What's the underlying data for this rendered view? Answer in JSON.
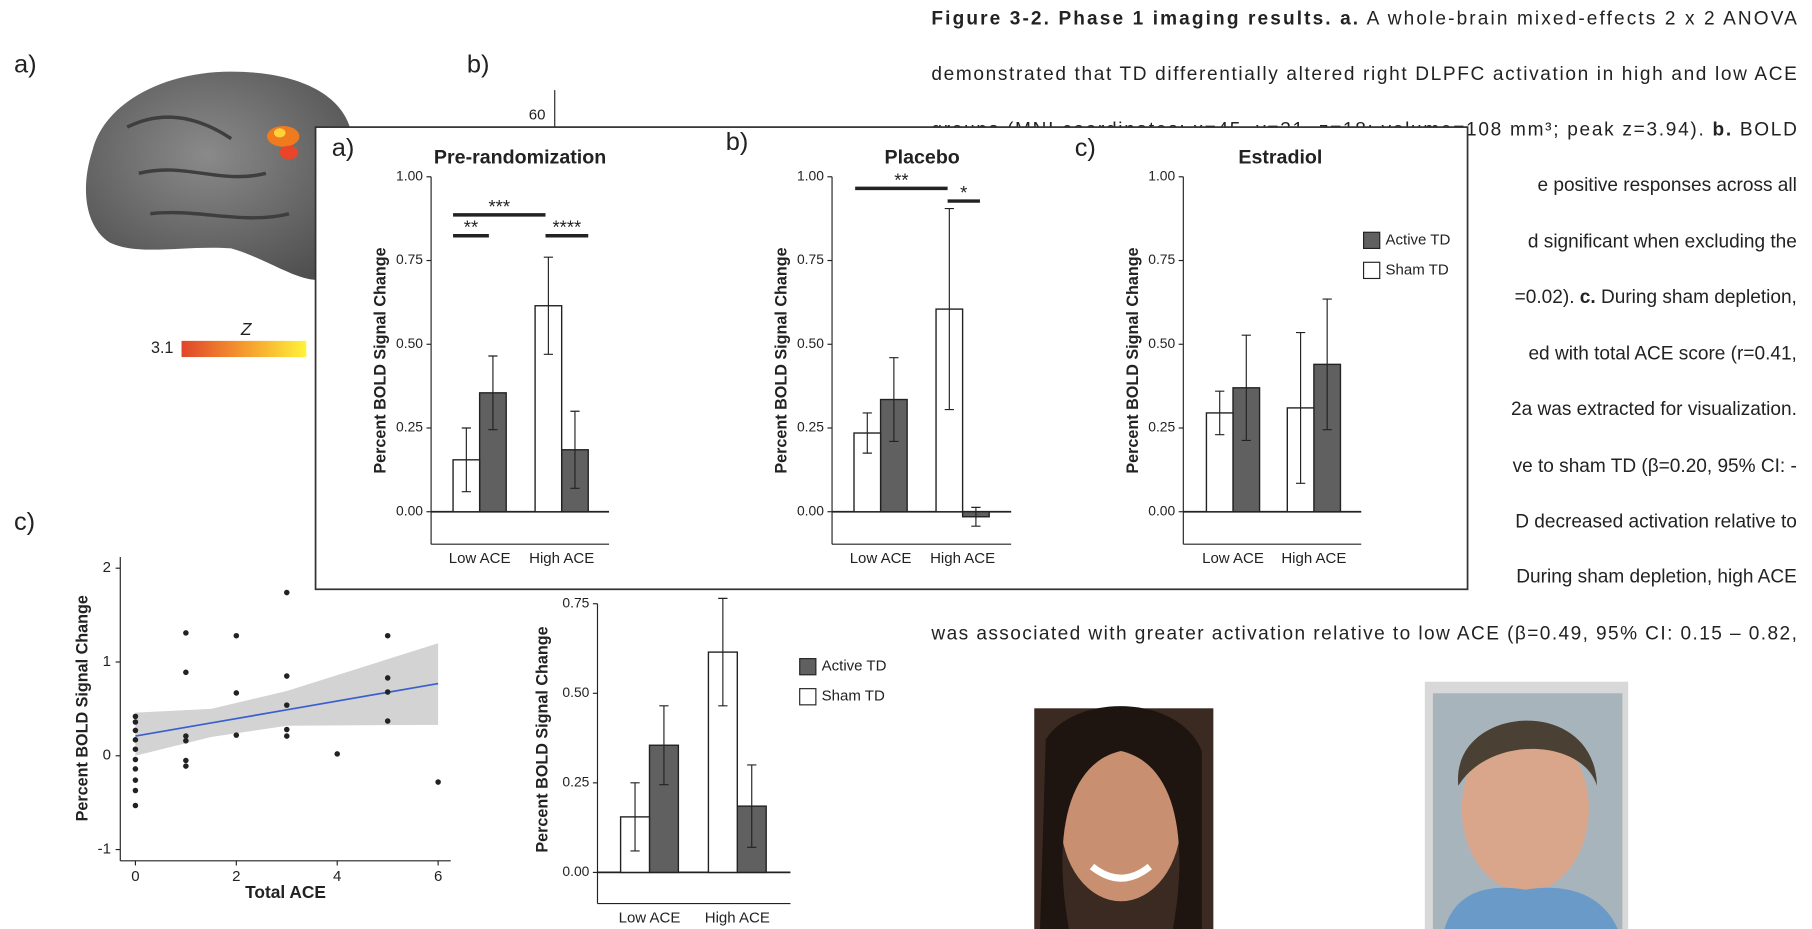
{
  "panel_labels": {
    "a": "a)",
    "b": "b)",
    "c": "c)",
    "overlay_a": "a)",
    "overlay_b": "b)",
    "overlay_c": "c)"
  },
  "brain": {
    "colorbar_label": "Z",
    "colorbar_min": "3.1"
  },
  "partial_axis_tick": "60",
  "caption": [
    [
      {
        "text": "Figure 3-2. Phase 1 imaging results.",
        "bold": true
      },
      {
        "text": " a.",
        "bold": true
      },
      {
        "text": " A whole-brain mixed-effects 2 x 2 ANOVA",
        "bold": false
      }
    ],
    [
      {
        "text": "demonstrated that TD differentially altered right DLPFC activation in high and low ACE",
        "bold": false
      }
    ],
    [
      {
        "text": "groups (MNI coordinates: x=45, y=31, z=18; volume=108 mm³; peak z=3.94).",
        "bold": false
      },
      {
        "text": " b.",
        "bold": true
      },
      {
        "text": " BOLD",
        "bold": false
      }
    ],
    [
      {
        "text": "e positive responses across all",
        "bold": false
      }
    ],
    [
      {
        "text": "d significant when excluding the",
        "bold": false
      }
    ],
    [
      {
        "text": "=0.02).",
        "bold": false
      },
      {
        "text": " c.",
        "bold": true
      },
      {
        "text": " During sham depletion,",
        "bold": false
      }
    ],
    [
      {
        "text": "ed with total ACE score (r=0.41,",
        "bold": false
      }
    ],
    [
      {
        "text": "2a was extracted for visualization.",
        "bold": false
      }
    ],
    [
      {
        "text": "ve to sham TD (β=0.20, 95% CI: -",
        "bold": false
      }
    ],
    [
      {
        "text": "D decreased activation relative to",
        "bold": false
      }
    ],
    [
      {
        "text": "During sham depletion, high ACE",
        "bold": false
      }
    ],
    [
      {
        "text": "was associated with greater activation relative to low ACE (β=0.49, 95% CI: 0.15 – 0.82,",
        "bold": false
      }
    ]
  ],
  "chart_data": [
    {
      "type": "bar",
      "ylabel": "Percent BOLD Signal Change",
      "categories": [
        "Low ACE",
        "High ACE"
      ],
      "series": [
        {
          "name": "Active TD",
          "color": "#606060",
          "values": [
            0.355,
            0.185
          ],
          "errors": [
            0.11,
            0.115
          ]
        },
        {
          "name": "Sham TD",
          "color": "#ffffff",
          "values": [
            0.155,
            0.615
          ],
          "errors": [
            0.095,
            0.15
          ]
        }
      ],
      "ylim": [
        -0.087,
        1.0
      ],
      "yticks": [
        {
          "value": 0,
          "label": "0.00"
        },
        {
          "value": 0.25,
          "label": "0.25"
        },
        {
          "value": 0.5,
          "label": "0.50"
        },
        {
          "value": 0.75,
          "label": "0.75"
        }
      ],
      "legend": "right",
      "annotations": []
    },
    {
      "type": "scatter",
      "xlabel": "Total ACE",
      "ylabel": "Percent BOLD Signal Change",
      "x": [
        0,
        0,
        0,
        0,
        0,
        0,
        0,
        0,
        0,
        0,
        1,
        1,
        1,
        1,
        1,
        1,
        2,
        2,
        2,
        3,
        3,
        3,
        3,
        3,
        4,
        5,
        5,
        5,
        5,
        6
      ],
      "values": [
        0.42,
        0.36,
        0.27,
        0.17,
        0.07,
        -0.04,
        -0.14,
        -0.26,
        -0.37,
        -0.53,
        1.31,
        0.89,
        0.21,
        0.16,
        -0.05,
        -0.11,
        1.28,
        0.67,
        0.22,
        1.74,
        0.85,
        0.54,
        0.28,
        0.21,
        0.02,
        1.28,
        0.83,
        0.68,
        0.37,
        -0.28
      ],
      "color": "#222222",
      "trend": {
        "x": [
          0,
          1.5,
          3,
          6
        ],
        "values": [
          0.21,
          0.35,
          0.49,
          0.77
        ],
        "lower": [
          0.0,
          0.2,
          0.32,
          0.33
        ],
        "upper": [
          0.46,
          0.5,
          0.69,
          1.2
        ],
        "color": "#3a5fcd",
        "band_color": "#d3d3d3"
      },
      "xlim": [
        -0.3,
        6.25
      ],
      "ylim": [
        -1.12,
        2.12
      ],
      "xticks": [
        0,
        2,
        4,
        6
      ],
      "yticks": [
        -1,
        0,
        1,
        2
      ]
    },
    {
      "type": "bar",
      "title": "Pre-randomization",
      "ylabel": "Percent BOLD Signal Change",
      "categories": [
        "Low ACE",
        "High ACE"
      ],
      "series": [
        {
          "name": "Active TD",
          "color": "#606060",
          "values": [
            0.355,
            0.185
          ],
          "errors": [
            0.11,
            0.115
          ]
        },
        {
          "name": "Sham TD",
          "color": "#ffffff",
          "values": [
            0.155,
            0.615
          ],
          "errors": [
            0.095,
            0.145
          ]
        }
      ],
      "ylim": [
        -0.097,
        1.0
      ],
      "yticks": [
        {
          "value": 0,
          "label": "0.00"
        },
        {
          "value": 0.25,
          "label": "0.25"
        },
        {
          "value": 0.5,
          "label": "0.50"
        },
        {
          "value": 0.75,
          "label": "0.75"
        },
        {
          "value": 1,
          "label": "1.00"
        }
      ],
      "annotations": [
        "**",
        "***",
        "****"
      ]
    },
    {
      "type": "bar",
      "title": "Placebo",
      "ylabel": "Percent BOLD Signal Change",
      "categories": [
        "Low ACE",
        "High ACE"
      ],
      "series": [
        {
          "name": "Active TD",
          "color": "#606060",
          "values": [
            0.335,
            -0.015
          ],
          "errors": [
            0.125,
            0.028
          ]
        },
        {
          "name": "Sham TD",
          "color": "#ffffff",
          "values": [
            0.235,
            0.605
          ],
          "errors": [
            0.06,
            0.3
          ]
        }
      ],
      "ylim": [
        -0.097,
        1.0
      ],
      "yticks": [
        {
          "value": 0,
          "label": "0.00"
        },
        {
          "value": 0.25,
          "label": "0.25"
        },
        {
          "value": 0.5,
          "label": "0.50"
        },
        {
          "value": 0.75,
          "label": "0.75"
        },
        {
          "value": 1,
          "label": "1.00"
        }
      ],
      "annotations": [
        "**",
        "*"
      ]
    },
    {
      "type": "bar",
      "title": "Estradiol",
      "ylabel": "Percent BOLD Signal Change",
      "categories": [
        "Low ACE",
        "High ACE"
      ],
      "series": [
        {
          "name": "Active TD",
          "color": "#606060",
          "values": [
            0.37,
            0.44
          ],
          "errors": [
            0.157,
            0.195
          ]
        },
        {
          "name": "Sham TD",
          "color": "#ffffff",
          "values": [
            0.295,
            0.31
          ],
          "errors": [
            0.065,
            0.225
          ]
        }
      ],
      "ylim": [
        -0.097,
        1.0
      ],
      "yticks": [
        {
          "value": 0,
          "label": "0.00"
        },
        {
          "value": 0.25,
          "label": "0.25"
        },
        {
          "value": 0.5,
          "label": "0.50"
        },
        {
          "value": 0.75,
          "label": "0.75"
        },
        {
          "value": 1,
          "label": "1.00"
        }
      ],
      "legend": "right",
      "annotations": []
    }
  ]
}
